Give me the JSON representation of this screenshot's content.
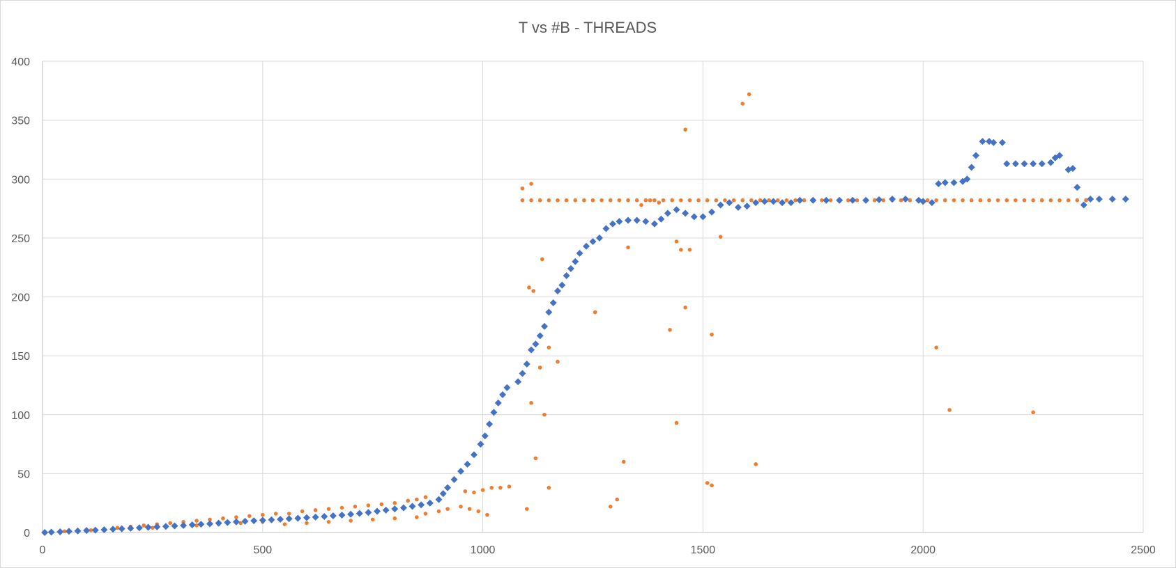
{
  "chart_data": {
    "type": "scatter",
    "title": "T vs #B - THREADS",
    "xlabel": "",
    "ylabel": "",
    "xlim": [
      0,
      2500
    ],
    "ylim": [
      0,
      400
    ],
    "xticks": [
      0,
      500,
      1000,
      1500,
      2000,
      2500
    ],
    "yticks": [
      0,
      50,
      100,
      150,
      200,
      250,
      300,
      350,
      400
    ],
    "xtick_labels": [
      "0",
      "500",
      "1000",
      "1500",
      "2000",
      "2500"
    ],
    "ytick_labels": [
      "0",
      "50",
      "100",
      "150",
      "200",
      "250",
      "300",
      "350",
      "400"
    ],
    "grid": true,
    "legend": "none",
    "series": [
      {
        "marker": "diamond",
        "color": "#4472c4",
        "points": [
          [
            5,
            0
          ],
          [
            20,
            0.3
          ],
          [
            40,
            0.6
          ],
          [
            60,
            1
          ],
          [
            80,
            1.3
          ],
          [
            100,
            1.7
          ],
          [
            120,
            2
          ],
          [
            140,
            2.4
          ],
          [
            160,
            2.8
          ],
          [
            180,
            3.2
          ],
          [
            200,
            3.6
          ],
          [
            220,
            4
          ],
          [
            240,
            4.4
          ],
          [
            260,
            4.8
          ],
          [
            280,
            5.2
          ],
          [
            300,
            5.6
          ],
          [
            320,
            6
          ],
          [
            340,
            6.5
          ],
          [
            360,
            7
          ],
          [
            380,
            7.4
          ],
          [
            400,
            8
          ],
          [
            420,
            8.5
          ],
          [
            440,
            9
          ],
          [
            460,
            9.5
          ],
          [
            480,
            10
          ],
          [
            500,
            10.4
          ],
          [
            520,
            10.8
          ],
          [
            540,
            11.2
          ],
          [
            560,
            11.7
          ],
          [
            580,
            12.1
          ],
          [
            600,
            12.6
          ],
          [
            620,
            13.1
          ],
          [
            640,
            13.6
          ],
          [
            660,
            14.2
          ],
          [
            680,
            14.8
          ],
          [
            700,
            15.5
          ],
          [
            720,
            16.2
          ],
          [
            740,
            17
          ],
          [
            760,
            18
          ],
          [
            780,
            19
          ],
          [
            800,
            20
          ],
          [
            820,
            21
          ],
          [
            840,
            22.2
          ],
          [
            860,
            23.5
          ],
          [
            880,
            25
          ],
          [
            900,
            28
          ],
          [
            910,
            33
          ],
          [
            920,
            38
          ],
          [
            935,
            45
          ],
          [
            950,
            52
          ],
          [
            965,
            58
          ],
          [
            980,
            66
          ],
          [
            995,
            75
          ],
          [
            1005,
            82
          ],
          [
            1015,
            92
          ],
          [
            1025,
            102
          ],
          [
            1035,
            110
          ],
          [
            1045,
            117
          ],
          [
            1055,
            123
          ],
          [
            1080,
            128
          ],
          [
            1090,
            135
          ],
          [
            1100,
            143
          ],
          [
            1110,
            155
          ],
          [
            1120,
            160
          ],
          [
            1130,
            167
          ],
          [
            1140,
            175
          ],
          [
            1150,
            187
          ],
          [
            1160,
            195
          ],
          [
            1170,
            205
          ],
          [
            1180,
            210
          ],
          [
            1190,
            218
          ],
          [
            1200,
            224
          ],
          [
            1210,
            230
          ],
          [
            1220,
            237
          ],
          [
            1235,
            243
          ],
          [
            1250,
            247
          ],
          [
            1265,
            250
          ],
          [
            1280,
            258
          ],
          [
            1295,
            262
          ],
          [
            1310,
            264
          ],
          [
            1330,
            265
          ],
          [
            1350,
            265
          ],
          [
            1370,
            264
          ],
          [
            1390,
            262
          ],
          [
            1405,
            266
          ],
          [
            1420,
            271
          ],
          [
            1440,
            274
          ],
          [
            1460,
            271
          ],
          [
            1480,
            268
          ],
          [
            1500,
            268
          ],
          [
            1520,
            272
          ],
          [
            1540,
            278
          ],
          [
            1560,
            280
          ],
          [
            1580,
            276
          ],
          [
            1600,
            277
          ],
          [
            1620,
            280
          ],
          [
            1640,
            281
          ],
          [
            1660,
            281
          ],
          [
            1680,
            280
          ],
          [
            1700,
            280
          ],
          [
            1720,
            282
          ],
          [
            1750,
            282
          ],
          [
            1780,
            282
          ],
          [
            1810,
            282
          ],
          [
            1840,
            282
          ],
          [
            1870,
            282
          ],
          [
            1900,
            282.5
          ],
          [
            1930,
            283
          ],
          [
            1960,
            283
          ],
          [
            1990,
            282
          ],
          [
            2000,
            281
          ],
          [
            2020,
            280
          ],
          [
            2035,
            296
          ],
          [
            2050,
            297
          ],
          [
            2070,
            297
          ],
          [
            2090,
            298
          ],
          [
            2100,
            300
          ],
          [
            2110,
            310
          ],
          [
            2120,
            320
          ],
          [
            2135,
            332
          ],
          [
            2150,
            332
          ],
          [
            2160,
            331
          ],
          [
            2180,
            331
          ],
          [
            2190,
            313
          ],
          [
            2210,
            313
          ],
          [
            2230,
            313
          ],
          [
            2250,
            313
          ],
          [
            2270,
            313
          ],
          [
            2290,
            314
          ],
          [
            2300,
            318
          ],
          [
            2310,
            320
          ],
          [
            2330,
            308
          ],
          [
            2340,
            309
          ],
          [
            2350,
            293
          ],
          [
            2365,
            278
          ],
          [
            2380,
            283
          ],
          [
            2400,
            283
          ],
          [
            2430,
            283
          ],
          [
            2460,
            283
          ]
        ]
      },
      {
        "marker": "circle",
        "color": "#ed7d31",
        "points": [
          [
            20,
            0.5
          ],
          [
            50,
            1
          ],
          [
            80,
            1.5
          ],
          [
            110,
            2
          ],
          [
            140,
            3
          ],
          [
            170,
            4
          ],
          [
            200,
            5
          ],
          [
            230,
            6
          ],
          [
            260,
            7
          ],
          [
            290,
            8
          ],
          [
            320,
            9
          ],
          [
            350,
            10
          ],
          [
            380,
            11
          ],
          [
            410,
            12
          ],
          [
            440,
            13
          ],
          [
            470,
            14
          ],
          [
            500,
            15
          ],
          [
            530,
            16
          ],
          [
            560,
            16
          ],
          [
            590,
            18
          ],
          [
            620,
            19
          ],
          [
            650,
            20
          ],
          [
            680,
            21
          ],
          [
            710,
            22
          ],
          [
            740,
            23
          ],
          [
            770,
            24
          ],
          [
            800,
            25
          ],
          [
            830,
            27
          ],
          [
            850,
            28
          ],
          [
            870,
            30
          ],
          [
            250,
            4
          ],
          [
            300,
            5
          ],
          [
            350,
            6
          ],
          [
            400,
            7
          ],
          [
            450,
            8
          ],
          [
            500,
            9
          ],
          [
            550,
            7
          ],
          [
            600,
            8
          ],
          [
            650,
            9
          ],
          [
            700,
            10
          ],
          [
            750,
            11
          ],
          [
            800,
            12
          ],
          [
            850,
            13
          ],
          [
            870,
            16
          ],
          [
            900,
            18
          ],
          [
            920,
            20
          ],
          [
            950,
            22
          ],
          [
            970,
            20
          ],
          [
            990,
            18
          ],
          [
            1010,
            15
          ],
          [
            960,
            35
          ],
          [
            980,
            34
          ],
          [
            1000,
            36
          ],
          [
            1020,
            38
          ],
          [
            1040,
            38
          ],
          [
            1060,
            39
          ],
          [
            1100,
            20
          ],
          [
            1110,
            110
          ],
          [
            1130,
            140
          ],
          [
            1140,
            100
          ],
          [
            1105,
            208
          ],
          [
            1115,
            205
          ],
          [
            1135,
            232
          ],
          [
            1150,
            157
          ],
          [
            1170,
            145
          ],
          [
            1150,
            38
          ],
          [
            1120,
            63
          ],
          [
            1255,
            187
          ],
          [
            1290,
            22
          ],
          [
            1305,
            28
          ],
          [
            1320,
            60
          ],
          [
            1330,
            242
          ],
          [
            1360,
            278
          ],
          [
            1380,
            282
          ],
          [
            1400,
            280
          ],
          [
            1425,
            172
          ],
          [
            1440,
            93
          ],
          [
            1440,
            247
          ],
          [
            1450,
            240
          ],
          [
            1460,
            342
          ],
          [
            1460,
            191
          ],
          [
            1470,
            240
          ],
          [
            1510,
            42
          ],
          [
            1520,
            40
          ],
          [
            1520,
            168
          ],
          [
            1540,
            251
          ],
          [
            1590,
            364
          ],
          [
            1605,
            372
          ],
          [
            1620,
            58
          ],
          [
            2030,
            157
          ],
          [
            2060,
            104
          ],
          [
            2250,
            102
          ],
          [
            1090,
            292
          ],
          [
            1110,
            296
          ],
          [
            1090,
            282
          ],
          [
            1110,
            282
          ],
          [
            1130,
            282
          ],
          [
            1150,
            282
          ],
          [
            1170,
            282
          ],
          [
            1190,
            282
          ],
          [
            1210,
            282
          ],
          [
            1230,
            282
          ],
          [
            1250,
            282
          ],
          [
            1270,
            282
          ],
          [
            1290,
            282
          ],
          [
            1310,
            282
          ],
          [
            1330,
            282
          ],
          [
            1350,
            282
          ],
          [
            1370,
            282
          ],
          [
            1390,
            282
          ],
          [
            1410,
            282
          ],
          [
            1430,
            282
          ],
          [
            1450,
            282
          ],
          [
            1470,
            282
          ],
          [
            1490,
            282
          ],
          [
            1510,
            282
          ],
          [
            1530,
            282
          ],
          [
            1550,
            282
          ],
          [
            1570,
            282
          ],
          [
            1590,
            282
          ],
          [
            1610,
            282
          ],
          [
            1630,
            282
          ],
          [
            1650,
            282
          ],
          [
            1670,
            282
          ],
          [
            1690,
            282
          ],
          [
            1710,
            282
          ],
          [
            1730,
            282
          ],
          [
            1750,
            282
          ],
          [
            1770,
            282
          ],
          [
            1790,
            282
          ],
          [
            1810,
            282
          ],
          [
            1830,
            282
          ],
          [
            1850,
            282
          ],
          [
            1870,
            282
          ],
          [
            1890,
            282
          ],
          [
            1910,
            282
          ],
          [
            1930,
            282
          ],
          [
            1950,
            282
          ],
          [
            1970,
            282
          ],
          [
            1990,
            282
          ],
          [
            2010,
            282
          ],
          [
            2030,
            282
          ],
          [
            2050,
            282
          ],
          [
            2070,
            282
          ],
          [
            2090,
            282
          ],
          [
            2110,
            282
          ],
          [
            2130,
            282
          ],
          [
            2150,
            282
          ],
          [
            2170,
            282
          ],
          [
            2190,
            282
          ],
          [
            2210,
            282
          ],
          [
            2230,
            282
          ],
          [
            2250,
            282
          ],
          [
            2270,
            282
          ],
          [
            2290,
            282
          ],
          [
            2310,
            282
          ],
          [
            2330,
            282
          ],
          [
            2350,
            282
          ],
          [
            2370,
            282
          ]
        ]
      }
    ]
  }
}
